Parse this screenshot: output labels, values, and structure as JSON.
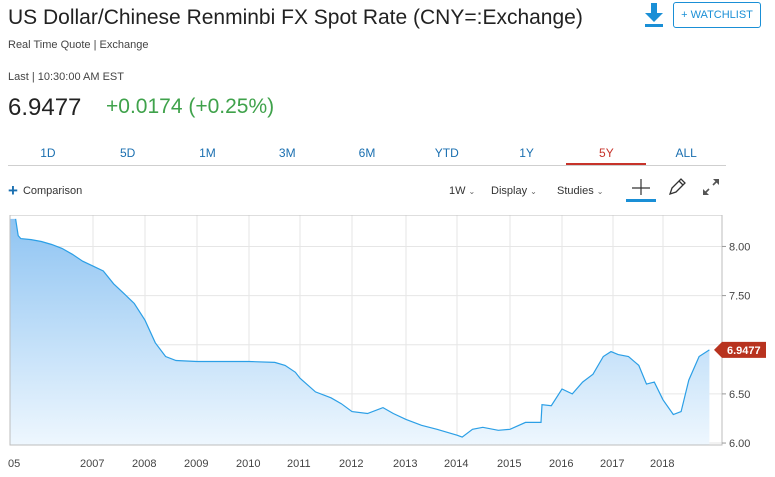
{
  "header": {
    "title": "US Dollar/Chinese Renminbi FX Spot Rate (CNY=:Exchange)",
    "source": "Real Time Quote | Exchange",
    "last_time": "Last | 10:30:00 AM EST",
    "price": "6.9477",
    "change": "+0.0174 (+0.25%)",
    "watchlist_label": "+ WATCHLIST",
    "download_icon": "download-arrow-icon"
  },
  "tabs": [
    {
      "label": "1D"
    },
    {
      "label": "5D"
    },
    {
      "label": "1M"
    },
    {
      "label": "3M"
    },
    {
      "label": "6M"
    },
    {
      "label": "YTD"
    },
    {
      "label": "1Y"
    },
    {
      "label": "5Y",
      "active": true
    },
    {
      "label": "ALL"
    }
  ],
  "toolbar": {
    "comparison_label": "Comparison",
    "interval_label": "1W",
    "display_label": "Display",
    "studies_label": "Studies"
  },
  "colors": {
    "accent": "#1a8fd6",
    "positive": "#3fa24b",
    "active_tab": "#c7332a",
    "line": "#2b9fe6",
    "price_tag": "#b8331f"
  },
  "chart_data": {
    "type": "area",
    "y_axis_side": "right",
    "yticks": [
      "8.00",
      "7.50",
      "6.50",
      "6.00"
    ],
    "ylim": [
      5.98,
      8.32
    ],
    "xticks": [
      "05",
      "2007",
      "2008",
      "2009",
      "2010",
      "2011",
      "2012",
      "2013",
      "2014",
      "2015",
      "2016",
      "2017",
      "2018"
    ],
    "current_value_label": "6.9477",
    "current_value": 6.9477,
    "grid": true,
    "series": [
      {
        "x": [
          2005.5,
          2005.55,
          2005.6,
          2005.8,
          2006.0,
          2006.2,
          2006.4,
          2006.6,
          2006.8,
          2007.0,
          2007.2,
          2007.4,
          2007.6,
          2007.8,
          2008.0,
          2008.2,
          2008.4,
          2008.6,
          2009.0,
          2009.5,
          2010.0,
          2010.5,
          2010.7,
          2010.9,
          2011.0,
          2011.3,
          2011.6,
          2011.8,
          2012.0,
          2012.3,
          2012.6,
          2012.8,
          2013.0,
          2013.3,
          2013.6,
          2014.0,
          2014.1,
          2014.3,
          2014.5,
          2014.8,
          2015.0,
          2015.3,
          2015.6,
          2015.62,
          2015.8,
          2016.0,
          2016.2,
          2016.4,
          2016.6,
          2016.8,
          2016.95,
          2017.1,
          2017.3,
          2017.5,
          2017.65,
          2017.8,
          2018.0,
          2018.2,
          2018.35,
          2018.5,
          2018.7,
          2018.9
        ],
        "values": [
          8.28,
          8.11,
          8.08,
          8.07,
          8.05,
          8.02,
          7.98,
          7.92,
          7.85,
          7.8,
          7.75,
          7.62,
          7.52,
          7.42,
          7.25,
          7.02,
          6.88,
          6.84,
          6.83,
          6.83,
          6.83,
          6.82,
          6.79,
          6.72,
          6.66,
          6.52,
          6.46,
          6.4,
          6.32,
          6.3,
          6.36,
          6.3,
          6.24,
          6.18,
          6.14,
          6.08,
          6.06,
          6.14,
          6.16,
          6.13,
          6.14,
          6.21,
          6.21,
          6.39,
          6.38,
          6.55,
          6.5,
          6.62,
          6.7,
          6.88,
          6.93,
          6.9,
          6.88,
          6.79,
          6.6,
          6.62,
          6.44,
          6.29,
          6.32,
          6.64,
          6.88,
          6.9477
        ]
      }
    ]
  }
}
